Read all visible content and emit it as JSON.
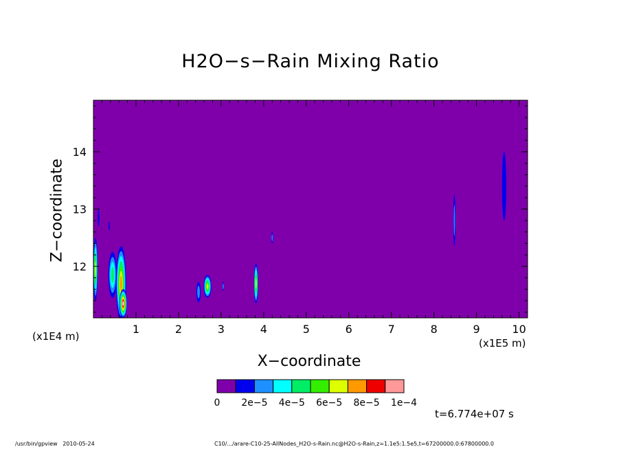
{
  "chart_data": {
    "type": "heatmap",
    "title": "H2O−s−Rain Mixing Ratio",
    "xlabel": "X−coordinate",
    "ylabel": "Z−coordinate",
    "x_unit_label": "(x1E5 m)",
    "y_unit_label": "(x1E4 m)",
    "xlim": [
      0.0,
      10.2
    ],
    "ylim": [
      11.1,
      14.9
    ],
    "x_ticks": [
      1,
      2,
      3,
      4,
      5,
      6,
      7,
      8,
      9,
      10
    ],
    "y_ticks": [
      12,
      13,
      14
    ],
    "background_color": "#7f00aa",
    "colorbar": {
      "colors": [
        "#7f00aa",
        "#0000ee",
        "#1e90ff",
        "#00ffff",
        "#00ee66",
        "#33ee00",
        "#ddff00",
        "#ff9900",
        "#ee0000",
        "#ff9999"
      ],
      "labels": [
        "0",
        "2e−5",
        "4e−5",
        "6e−5",
        "8e−5",
        "1e−4"
      ]
    },
    "features": [
      {
        "x": 0.05,
        "z": 11.95,
        "w": 0.05,
        "h": 0.55,
        "level": 6
      },
      {
        "x": 0.12,
        "z": 12.85,
        "w": 0.02,
        "h": 0.15,
        "level": 1
      },
      {
        "x": 0.37,
        "z": 12.7,
        "w": 0.015,
        "h": 0.08,
        "level": 1
      },
      {
        "x": 0.45,
        "z": 11.85,
        "w": 0.1,
        "h": 0.4,
        "level": 4
      },
      {
        "x": 0.65,
        "z": 11.7,
        "w": 0.12,
        "h": 0.65,
        "level": 7
      },
      {
        "x": 0.7,
        "z": 11.35,
        "w": 0.09,
        "h": 0.25,
        "level": 9
      },
      {
        "x": 2.47,
        "z": 11.55,
        "w": 0.05,
        "h": 0.18,
        "level": 2
      },
      {
        "x": 2.68,
        "z": 11.65,
        "w": 0.09,
        "h": 0.2,
        "level": 6
      },
      {
        "x": 3.05,
        "z": 11.65,
        "w": 0.015,
        "h": 0.08,
        "level": 2
      },
      {
        "x": 3.82,
        "z": 11.7,
        "w": 0.05,
        "h": 0.35,
        "level": 6
      },
      {
        "x": 4.2,
        "z": 12.5,
        "w": 0.02,
        "h": 0.1,
        "level": 2
      },
      {
        "x": 8.48,
        "z": 12.8,
        "w": 0.025,
        "h": 0.45,
        "level": 2
      },
      {
        "x": 9.65,
        "z": 13.4,
        "w": 0.05,
        "h": 0.6,
        "level": 1
      }
    ],
    "time_label": "t=6.774e+07 s"
  },
  "footer": {
    "left": "/usr/bin/gpview   2010-05-24",
    "right": "C10/.../arare-C10-25-AllNodes_H2O-s-Rain.nc@H2O-s-Rain,z=1.1e5:1.5e5,t=67200000.0:67800000.0"
  }
}
